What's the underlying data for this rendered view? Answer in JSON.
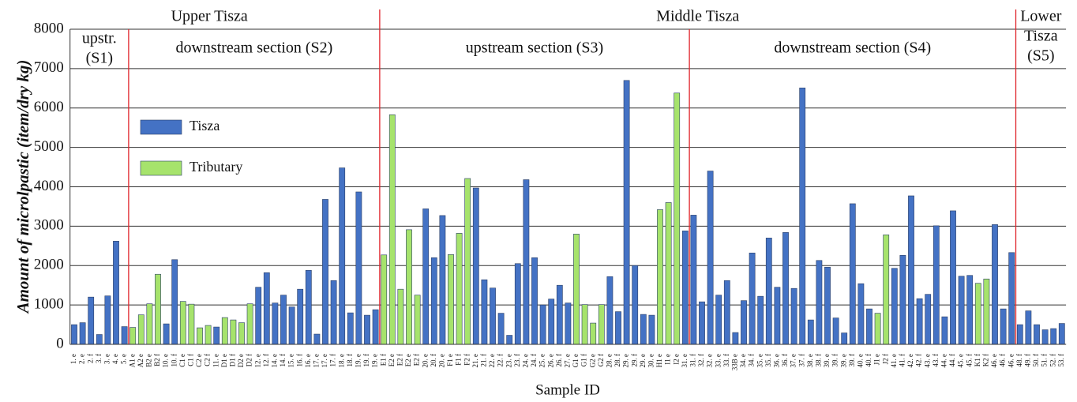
{
  "chart_data": {
    "type": "bar",
    "y_label": "Amount of microlpastic (item/dry kg)",
    "x_label": "Sample ID",
    "categories": [
      "1. e",
      "2. e",
      "2. f",
      "3. f",
      "3. e",
      "4. e",
      "5. e",
      "A1 e",
      "A2 e",
      "B2 e",
      "B2 f",
      "10. e",
      "10. f",
      "C1 e",
      "C1 f",
      "C2 e",
      "C2 f",
      "11. e",
      "D1 e",
      "D1 f",
      "D2 e",
      "D2 f",
      "12. e",
      "12. f",
      "14. e",
      "14. f",
      "15. e",
      "16. f",
      "16. e",
      "17. e",
      "17. e",
      "17. f",
      "18. e",
      "18. f",
      "19. e",
      "19. f",
      "19. e",
      "E1 f",
      "E2 e",
      "E2 f",
      "E2 e",
      "E2 f",
      "20. e",
      "20. f",
      "20. e",
      "F1 e",
      "F1 f",
      "F2 f",
      "21. e",
      "21. f",
      "22. e",
      "22. f",
      "23. e",
      "23. f",
      "24. e",
      "24. f",
      "25. e",
      "26. e",
      "26. f",
      "27. e",
      "G1 e",
      "G1 f",
      "G2 e",
      "G2 f",
      "28. e",
      "28. f",
      "29. e",
      "29. f",
      "29. e",
      "30. e",
      "H1 e",
      "I1 e",
      "I2 e",
      "31. e",
      "31. f",
      "32. f",
      "32. e",
      "33. e",
      "33. f",
      "33B e",
      "34. e",
      "34. f",
      "35. e",
      "35. f",
      "36. e",
      "36. f",
      "37. e",
      "37. f",
      "38. e",
      "38. f",
      "39. e",
      "39. f",
      "39. e",
      "39. f",
      "40. e",
      "40. f",
      "J1 e",
      "J2 f",
      "41. e",
      "41. f",
      "42. e",
      "42. f",
      "43. e",
      "43. f",
      "44. e",
      "44. f",
      "45. e",
      "45. f",
      "K1 f",
      "K2 f",
      "46. e",
      "46. f",
      "46. e",
      "48. f",
      "49. f",
      "50. f",
      "51. f",
      "52. f",
      "53. f"
    ],
    "series": [
      {
        "name": "Tisza",
        "color": "#4472c4",
        "values": [
          500,
          550,
          1200,
          250,
          1230,
          2620,
          450,
          null,
          null,
          null,
          null,
          520,
          2150,
          null,
          null,
          null,
          null,
          440,
          null,
          null,
          null,
          null,
          1450,
          1820,
          1050,
          1250,
          950,
          1400,
          1880,
          260,
          3680,
          1620,
          4480,
          800,
          3870,
          740,
          880,
          null,
          null,
          null,
          null,
          null,
          3440,
          2200,
          3270,
          null,
          null,
          null,
          3970,
          1640,
          1430,
          790,
          230,
          2050,
          4180,
          2200,
          1000,
          1150,
          1500,
          1050,
          null,
          null,
          null,
          null,
          1720,
          830,
          6700,
          2000,
          760,
          740,
          null,
          null,
          null,
          2880,
          3280,
          1080,
          4400,
          1250,
          1620,
          300,
          1110,
          2320,
          1220,
          2700,
          1450,
          2840,
          1420,
          6510,
          620,
          2130,
          1960,
          670,
          290,
          3570,
          1540,
          900,
          null,
          null,
          1930,
          2260,
          3770,
          1160,
          1270,
          3010,
          700,
          3390,
          1730,
          1750,
          null,
          null,
          3040,
          900,
          2330,
          500,
          850,
          500,
          370,
          400,
          530
        ]
      },
      {
        "name": "Tributary",
        "color": "#a6e36c",
        "values": [
          null,
          null,
          null,
          null,
          null,
          null,
          null,
          430,
          750,
          1030,
          1780,
          null,
          null,
          1090,
          1020,
          420,
          480,
          null,
          680,
          620,
          550,
          1030,
          null,
          null,
          null,
          null,
          null,
          null,
          null,
          null,
          null,
          null,
          null,
          null,
          null,
          null,
          null,
          2270,
          5830,
          1400,
          2910,
          1250,
          null,
          null,
          null,
          2280,
          2820,
          4210,
          null,
          null,
          null,
          null,
          null,
          null,
          null,
          null,
          null,
          null,
          null,
          null,
          2800,
          1010,
          540,
          1010,
          null,
          null,
          null,
          null,
          null,
          null,
          3420,
          3600,
          6380,
          null,
          null,
          null,
          null,
          null,
          null,
          null,
          null,
          null,
          null,
          null,
          null,
          null,
          null,
          null,
          null,
          null,
          null,
          null,
          null,
          null,
          null,
          null,
          790,
          2780,
          null,
          null,
          null,
          null,
          null,
          null,
          null,
          null,
          null,
          null,
          1550,
          1660,
          null,
          null,
          null,
          null,
          null,
          null,
          null,
          null,
          null
        ]
      }
    ],
    "sections": [
      {
        "lines": [
          "upstr.",
          "(S1)"
        ],
        "start": 0,
        "end": 6
      },
      {
        "lines": [
          "downstream section (S2)"
        ],
        "start": 7,
        "end": 36
      },
      {
        "lines": [
          "upstream section (S3)"
        ],
        "start": 37,
        "end": 73
      },
      {
        "lines": [
          "downstream section (S4)"
        ],
        "start": 74,
        "end": 112
      },
      {
        "lines": [
          "(S5)"
        ],
        "start": 113,
        "end": 118
      }
    ],
    "regions": [
      {
        "lines": [
          "Upper Tisza"
        ],
        "sections": [
          0,
          1
        ]
      },
      {
        "lines": [
          "Middle Tisza"
        ],
        "sections": [
          2,
          3
        ]
      },
      {
        "lines": [
          "Lower",
          "Tisza"
        ],
        "sections": [
          4,
          4
        ]
      }
    ],
    "ylim": [
      0,
      8000
    ],
    "yticks": [
      0,
      1000,
      2000,
      3000,
      4000,
      5000,
      6000,
      7000,
      8000
    ],
    "grid": true
  }
}
